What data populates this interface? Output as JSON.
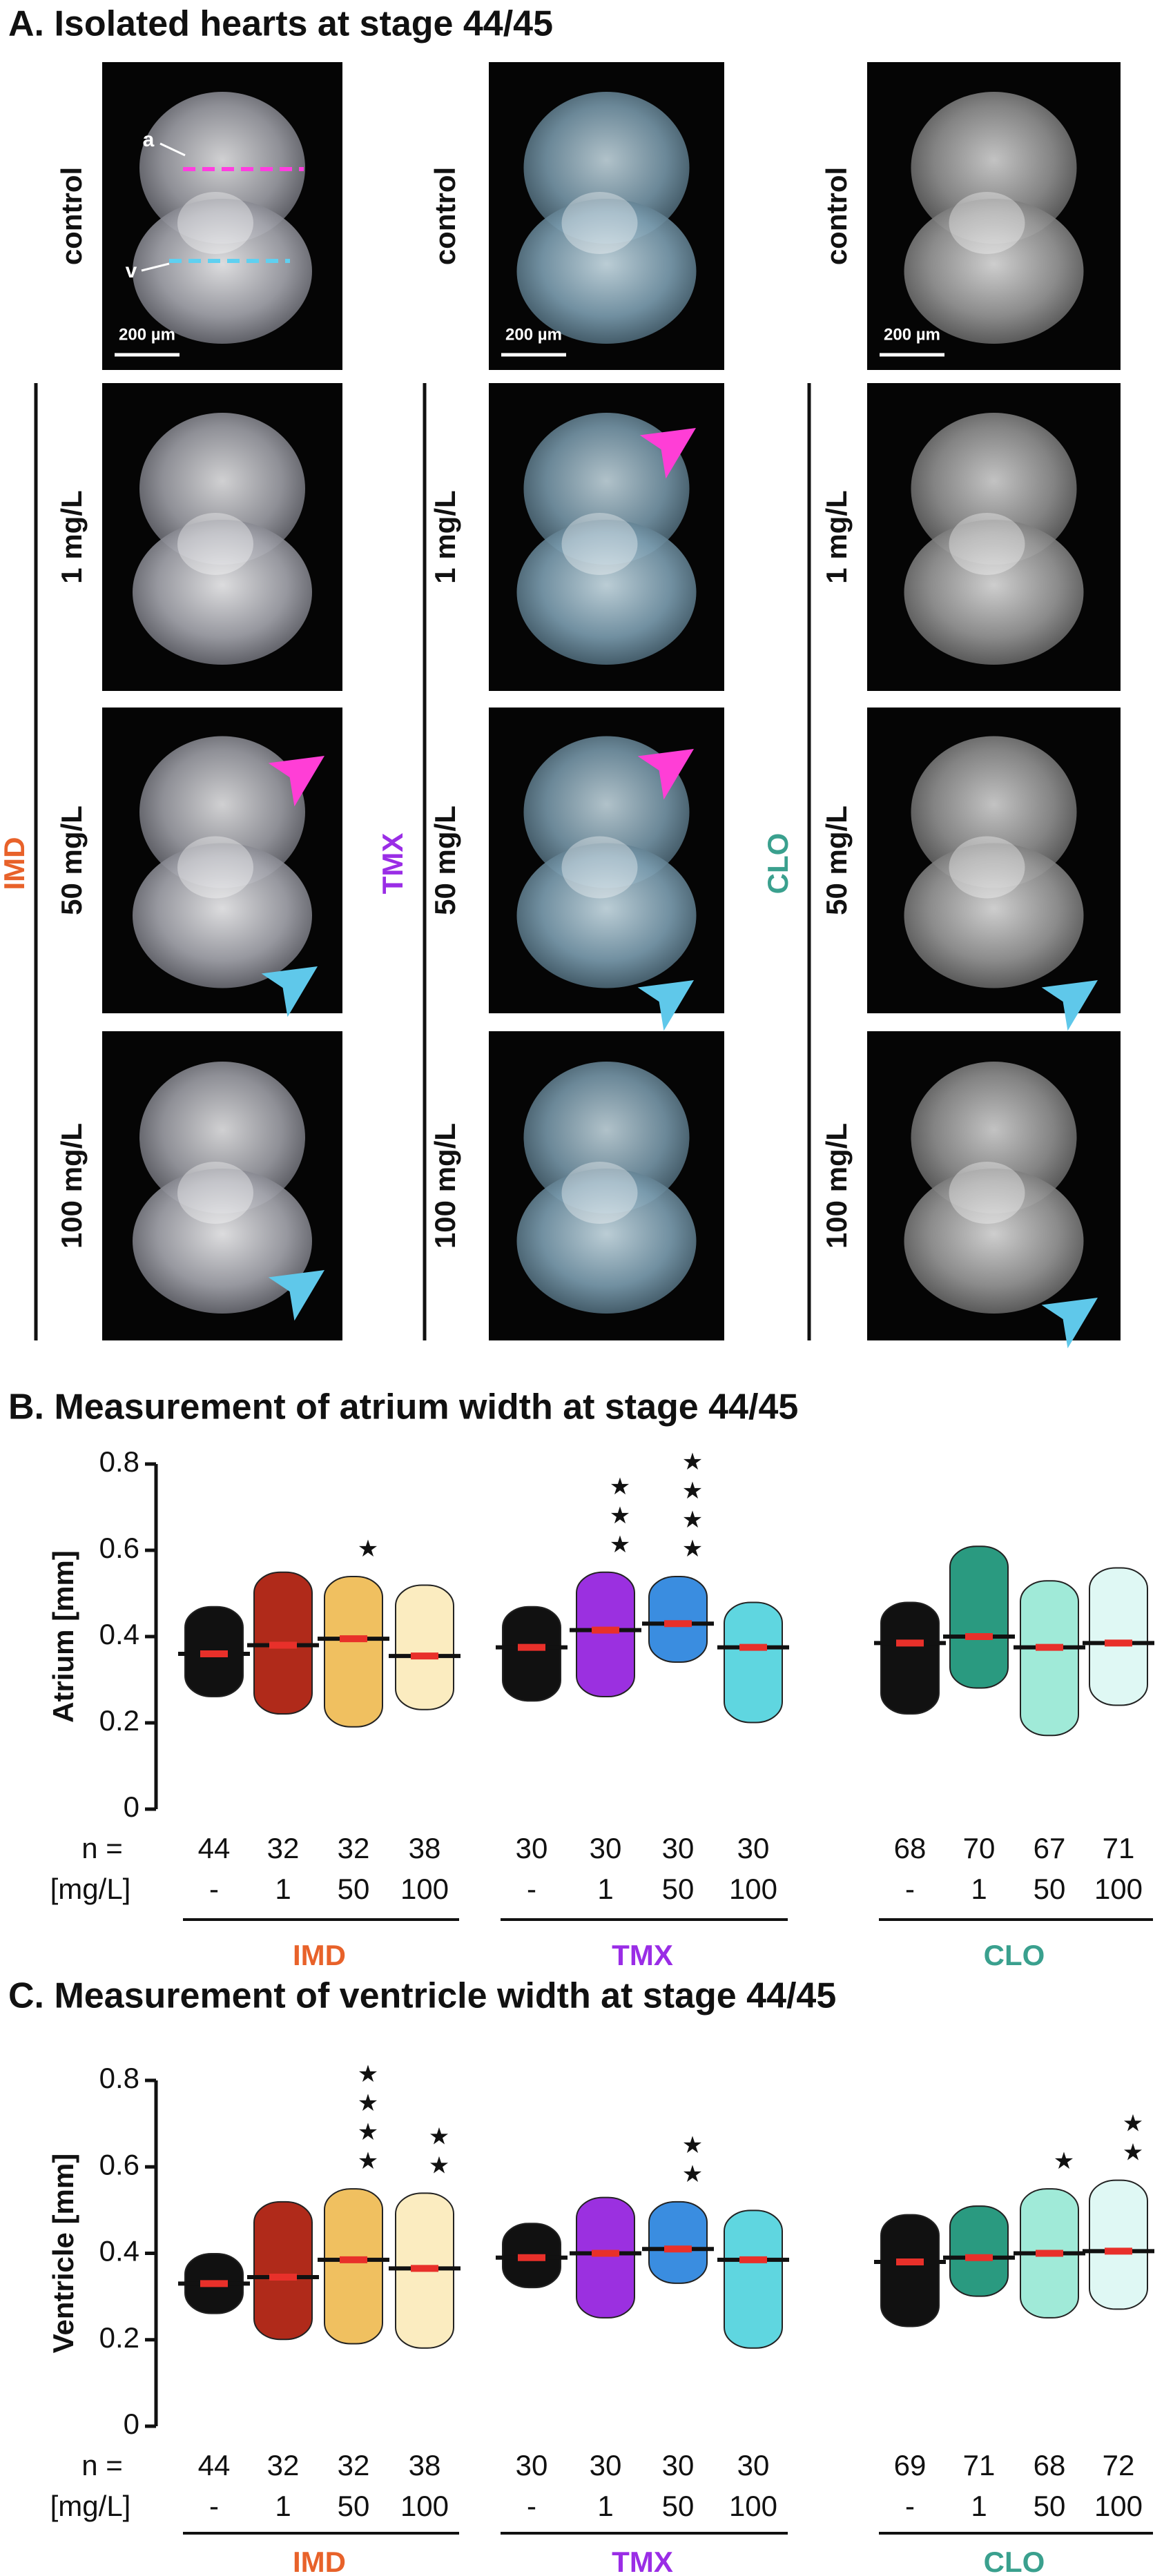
{
  "panel_a": {
    "title": "A. Isolated hearts at stage 44/45",
    "rows": [
      "control",
      "1 mg/L",
      "50 mg/L",
      "100 mg/L"
    ],
    "groups": [
      {
        "name": "IMD",
        "color": "#e8622a"
      },
      {
        "name": "TMX",
        "color": "#9a2de6"
      },
      {
        "name": "CLO",
        "color": "#3aa08e"
      }
    ],
    "scale_bar": "200 µm",
    "atrium_label": "a",
    "ventricle_label": "v"
  },
  "chart_data": [
    {
      "type": "dot",
      "title": "B. Measurement of atrium width at stage 44/45",
      "ylabel": "Atrium  [mm]",
      "ylim": [
        0,
        0.8
      ],
      "yticks": [
        0,
        0.2,
        0.4,
        0.6,
        0.8
      ],
      "n_label": "n =",
      "dose_label": "[mg/L]",
      "groups": [
        {
          "name": "IMD",
          "color": "#e8622a",
          "series": [
            {
              "dose": "-",
              "n": 44,
              "color": "#111111",
              "mean": 0.36,
              "min": 0.28,
              "max": 0.45
            },
            {
              "dose": "1",
              "n": 32,
              "color": "#b02a1a",
              "mean": 0.38,
              "min": 0.24,
              "max": 0.53
            },
            {
              "dose": "50",
              "n": 32,
              "color": "#f0c060",
              "mean": 0.395,
              "min": 0.21,
              "max": 0.52,
              "stars": "★"
            },
            {
              "dose": "100",
              "n": 38,
              "color": "#fbecc0",
              "mean": 0.355,
              "min": 0.25,
              "max": 0.5
            }
          ]
        },
        {
          "name": "TMX",
          "color": "#9a2de6",
          "series": [
            {
              "dose": "-",
              "n": 30,
              "color": "#111111",
              "mean": 0.375,
              "min": 0.27,
              "max": 0.45
            },
            {
              "dose": "1",
              "n": 30,
              "color": "#9b30e0",
              "mean": 0.415,
              "min": 0.28,
              "max": 0.53,
              "stars": "★★★"
            },
            {
              "dose": "50",
              "n": 30,
              "color": "#3a8de0",
              "mean": 0.43,
              "min": 0.36,
              "max": 0.52,
              "stars": "★★★★"
            },
            {
              "dose": "100",
              "n": 30,
              "color": "#5fd6e0",
              "mean": 0.375,
              "min": 0.22,
              "max": 0.46
            }
          ]
        },
        {
          "name": "CLO",
          "color": "#3aa08e",
          "series": [
            {
              "dose": "-",
              "n": 68,
              "color": "#111111",
              "mean": 0.385,
              "min": 0.24,
              "max": 0.46
            },
            {
              "dose": "1",
              "n": 70,
              "color": "#2a9a80",
              "mean": 0.4,
              "min": 0.3,
              "max": 0.59
            },
            {
              "dose": "50",
              "n": 67,
              "color": "#a0ead8",
              "mean": 0.375,
              "min": 0.19,
              "max": 0.51
            },
            {
              "dose": "100",
              "n": 71,
              "color": "#dff8f4",
              "mean": 0.385,
              "min": 0.26,
              "max": 0.54
            }
          ]
        }
      ]
    },
    {
      "type": "dot",
      "title": "C. Measurement of ventricle width at stage 44/45",
      "ylabel": "Ventricle  [mm]",
      "ylim": [
        0,
        0.8
      ],
      "yticks": [
        0,
        0.2,
        0.4,
        0.6,
        0.8
      ],
      "n_label": "n =",
      "dose_label": "[mg/L]",
      "groups": [
        {
          "name": "IMD",
          "color": "#e8622a",
          "series": [
            {
              "dose": "-",
              "n": 44,
              "color": "#111111",
              "mean": 0.33,
              "min": 0.28,
              "max": 0.38
            },
            {
              "dose": "1",
              "n": 32,
              "color": "#b02a1a",
              "mean": 0.345,
              "min": 0.22,
              "max": 0.5
            },
            {
              "dose": "50",
              "n": 32,
              "color": "#f0c060",
              "mean": 0.385,
              "min": 0.21,
              "max": 0.53,
              "stars": "★★★★"
            },
            {
              "dose": "100",
              "n": 38,
              "color": "#fbecc0",
              "mean": 0.365,
              "min": 0.2,
              "max": 0.52,
              "stars": "★★"
            }
          ]
        },
        {
          "name": "TMX",
          "color": "#9a2de6",
          "series": [
            {
              "dose": "-",
              "n": 30,
              "color": "#111111",
              "mean": 0.39,
              "min": 0.34,
              "max": 0.45
            },
            {
              "dose": "1",
              "n": 30,
              "color": "#9b30e0",
              "mean": 0.4,
              "min": 0.27,
              "max": 0.51
            },
            {
              "dose": "50",
              "n": 30,
              "color": "#3a8de0",
              "mean": 0.41,
              "min": 0.35,
              "max": 0.5,
              "stars": "★★"
            },
            {
              "dose": "100",
              "n": 30,
              "color": "#5fd6e0",
              "mean": 0.385,
              "min": 0.2,
              "max": 0.48
            }
          ]
        },
        {
          "name": "CLO",
          "color": "#3aa08e",
          "series": [
            {
              "dose": "-",
              "n": 69,
              "color": "#111111",
              "mean": 0.38,
              "min": 0.25,
              "max": 0.47
            },
            {
              "dose": "1",
              "n": 71,
              "color": "#2a9a80",
              "mean": 0.39,
              "min": 0.32,
              "max": 0.49
            },
            {
              "dose": "50",
              "n": 68,
              "color": "#a0ead8",
              "mean": 0.4,
              "min": 0.27,
              "max": 0.53,
              "stars": "★"
            },
            {
              "dose": "100",
              "n": 72,
              "color": "#dff8f4",
              "mean": 0.405,
              "min": 0.29,
              "max": 0.55,
              "stars": "★★"
            }
          ]
        }
      ]
    }
  ]
}
